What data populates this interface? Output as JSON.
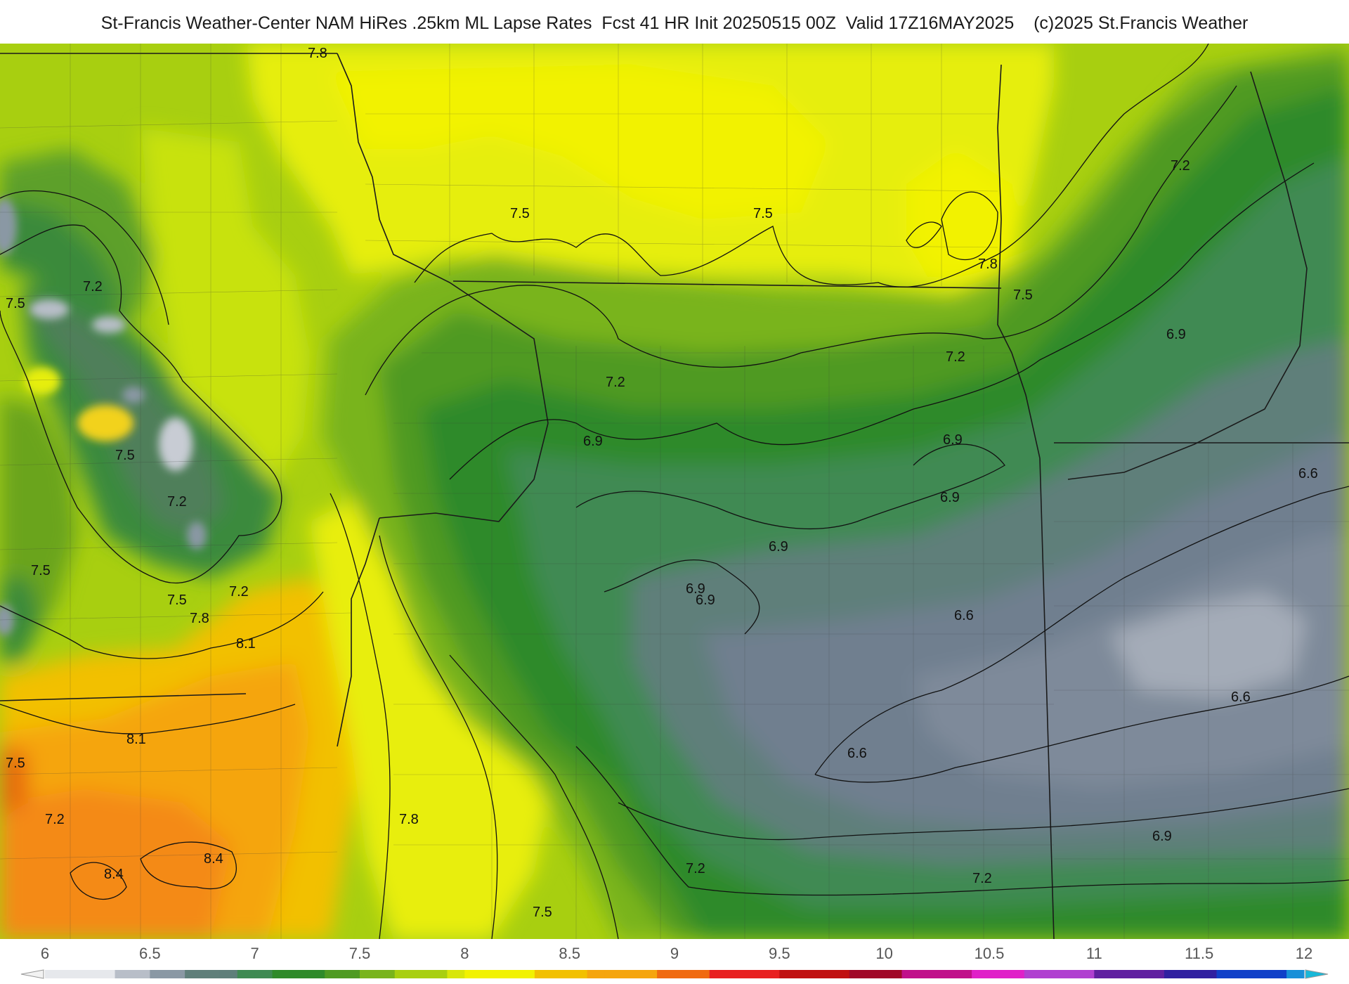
{
  "title": "St-Francis Weather-Center NAM HiRes .25km ML Lapse Rates  Fcst 41 HR Init 20250515 00Z  Valid 17Z16MAY2025    (c)2025 St.Francis Weather",
  "colors": {
    "dark_green": "#2e7d32",
    "green": "#6aa81e",
    "yellow": "#f2f200",
    "orange": "#f59a10",
    "slate": "#6f7f8f",
    "gray_light": "#b8bec8"
  },
  "contour_labels": [
    {
      "text": "7.8"
    },
    {
      "text": "7.5"
    },
    {
      "text": "7.5"
    },
    {
      "text": "7.8"
    },
    {
      "text": "7.5"
    },
    {
      "text": "7.2"
    },
    {
      "text": "7.2"
    },
    {
      "text": "7.5"
    },
    {
      "text": "7.2"
    },
    {
      "text": "7.2"
    },
    {
      "text": "6.9"
    },
    {
      "text": "6.9"
    },
    {
      "text": "6.9"
    },
    {
      "text": "6.9"
    },
    {
      "text": "6.9"
    },
    {
      "text": "6.9"
    },
    {
      "text": "6.6"
    },
    {
      "text": "6.6"
    },
    {
      "text": "6.6"
    },
    {
      "text": "6.6"
    },
    {
      "text": "6.9"
    },
    {
      "text": "7.2"
    },
    {
      "text": "7.2"
    },
    {
      "text": "7.5"
    },
    {
      "text": "7.8"
    },
    {
      "text": "7.5"
    },
    {
      "text": "7.2"
    },
    {
      "text": "7.5"
    },
    {
      "text": "7.2"
    },
    {
      "text": "7.5"
    },
    {
      "text": "7.5"
    },
    {
      "text": "7.2"
    },
    {
      "text": "7.8"
    },
    {
      "text": "8.1"
    },
    {
      "text": "8.1"
    },
    {
      "text": "8.4"
    },
    {
      "text": "8.4"
    },
    {
      "text": "6.9"
    }
  ],
  "colorbar": {
    "ticks": [
      "6",
      "6.5",
      "7",
      "7.5",
      "8",
      "8.5",
      "9",
      "9.5",
      "10",
      "10.5",
      "11",
      "11.5",
      "12"
    ],
    "min": 6,
    "max": 12
  }
}
